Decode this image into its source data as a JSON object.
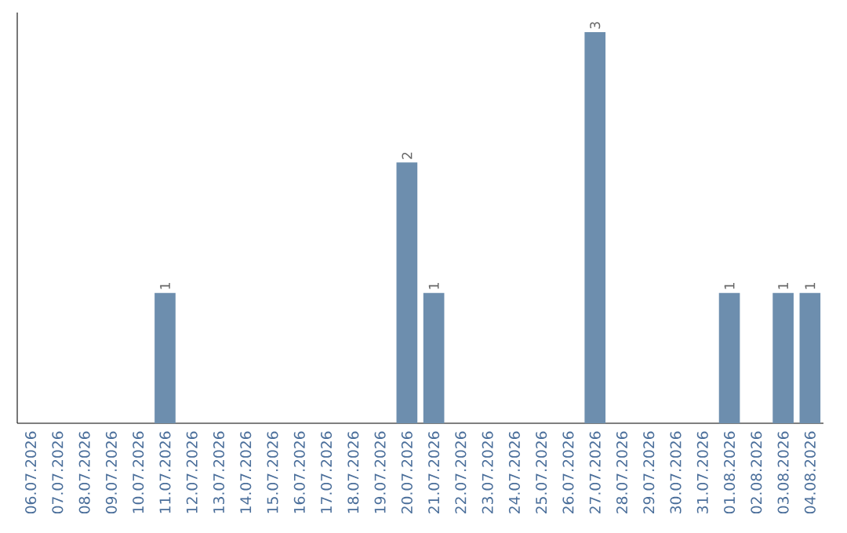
{
  "chart_data": {
    "type": "bar",
    "categories": [
      "06.07.2026",
      "07.07.2026",
      "08.07.2026",
      "09.07.2026",
      "10.07.2026",
      "11.07.2026",
      "12.07.2026",
      "13.07.2026",
      "14.07.2026",
      "15.07.2026",
      "16.07.2026",
      "17.07.2026",
      "18.07.2026",
      "19.07.2026",
      "20.07.2026",
      "21.07.2026",
      "22.07.2026",
      "23.07.2026",
      "24.07.2026",
      "25.07.2026",
      "26.07.2026",
      "27.07.2026",
      "28.07.2026",
      "29.07.2026",
      "30.07.2026",
      "31.07.2026",
      "01.08.2026",
      "02.08.2026",
      "03.08.2026",
      "04.08.2026"
    ],
    "values": [
      0,
      0,
      0,
      0,
      0,
      1,
      0,
      0,
      0,
      0,
      0,
      0,
      0,
      0,
      2,
      1,
      0,
      0,
      0,
      0,
      0,
      3,
      0,
      0,
      0,
      0,
      1,
      0,
      1,
      1
    ],
    "value_labels": [
      null,
      null,
      null,
      null,
      null,
      "1",
      null,
      null,
      null,
      null,
      null,
      null,
      null,
      null,
      "2",
      "1",
      null,
      null,
      null,
      null,
      null,
      "3",
      null,
      null,
      null,
      null,
      "1",
      null,
      "1",
      "1"
    ],
    "color": "#6d8eae",
    "tick_labels": "x"
  }
}
